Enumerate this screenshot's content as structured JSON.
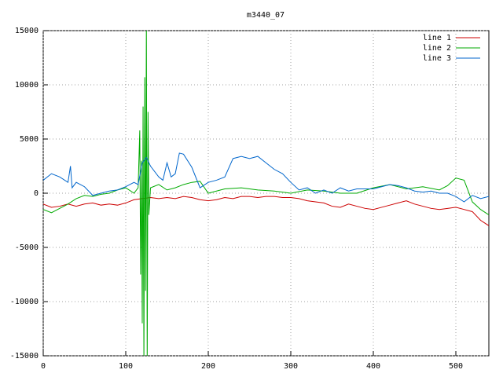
{
  "chart_data": {
    "type": "line",
    "title": "m3440_07",
    "xlim": [
      0,
      540
    ],
    "xticks": [
      0,
      100,
      200,
      300,
      400,
      500
    ],
    "ylim": [
      -15000,
      15000
    ],
    "yticks": [
      -15000,
      -10000,
      -5000,
      0,
      5000,
      10000,
      15000
    ],
    "grid": true,
    "legend": "top-right",
    "series": [
      {
        "name": "line 1",
        "color": "#cc0000",
        "x": [
          0,
          10,
          20,
          30,
          40,
          50,
          60,
          70,
          80,
          90,
          100,
          110,
          120,
          130,
          140,
          150,
          160,
          170,
          180,
          190,
          200,
          210,
          220,
          230,
          240,
          250,
          260,
          270,
          280,
          290,
          300,
          310,
          320,
          330,
          340,
          350,
          360,
          370,
          380,
          390,
          400,
          410,
          420,
          430,
          440,
          450,
          460,
          470,
          480,
          490,
          500,
          510,
          520,
          530,
          540
        ],
        "values": [
          -1000,
          -1300,
          -1200,
          -1000,
          -1200,
          -1000,
          -900,
          -1100,
          -1000,
          -1100,
          -900,
          -600,
          -500,
          -400,
          -500,
          -400,
          -500,
          -300,
          -400,
          -600,
          -700,
          -600,
          -400,
          -500,
          -300,
          -300,
          -400,
          -300,
          -300,
          -400,
          -400,
          -500,
          -700,
          -800,
          -900,
          -1200,
          -1300,
          -1000,
          -1200,
          -1400,
          -1500,
          -1300,
          -1100,
          -900,
          -700,
          -1000,
          -1200,
          -1400,
          -1500,
          -1400,
          -1300,
          -1500,
          -1700,
          -2500,
          -3000
        ]
      },
      {
        "name": "line 2",
        "color": "#00aa00",
        "x": [
          0,
          10,
          20,
          30,
          40,
          50,
          60,
          70,
          80,
          90,
          100,
          110,
          115,
          117,
          118,
          119,
          120,
          121,
          122,
          123,
          124,
          125,
          126,
          127,
          128,
          130,
          140,
          150,
          160,
          170,
          180,
          190,
          200,
          210,
          220,
          240,
          260,
          280,
          300,
          320,
          340,
          360,
          380,
          400,
          420,
          440,
          460,
          480,
          490,
          500,
          510,
          520,
          530,
          540
        ],
        "values": [
          -1500,
          -1800,
          -1400,
          -1000,
          -500,
          -200,
          -300,
          -100,
          0,
          300,
          500,
          0,
          500,
          5800,
          -7500,
          3000,
          -12000,
          8000,
          -16000,
          10700,
          -9000,
          16000,
          -16000,
          7500,
          -2000,
          500,
          800,
          300,
          500,
          800,
          1000,
          1100,
          0,
          200,
          400,
          500,
          300,
          200,
          0,
          300,
          200,
          0,
          0,
          500,
          800,
          400,
          600,
          300,
          700,
          1400,
          1200,
          -800,
          -1500,
          -2000
        ]
      },
      {
        "name": "line 3",
        "color": "#0066cc",
        "x": [
          0,
          10,
          20,
          30,
          33,
          35,
          40,
          50,
          60,
          70,
          80,
          90,
          100,
          110,
          115,
          120,
          125,
          130,
          140,
          145,
          150,
          155,
          160,
          165,
          170,
          180,
          190,
          200,
          210,
          220,
          230,
          240,
          250,
          260,
          270,
          280,
          290,
          300,
          310,
          320,
          330,
          340,
          350,
          360,
          370,
          380,
          400,
          410,
          420,
          430,
          440,
          450,
          460,
          470,
          480,
          490,
          500,
          510,
          520,
          530,
          540
        ],
        "values": [
          1200,
          1800,
          1500,
          1000,
          2500,
          500,
          1000,
          600,
          -200,
          0,
          200,
          300,
          600,
          1000,
          800,
          2800,
          3300,
          2500,
          1500,
          1200,
          2800,
          1500,
          1800,
          3700,
          3600,
          2400,
          500,
          1000,
          1200,
          1500,
          3200,
          3400,
          3200,
          3400,
          2800,
          2200,
          1800,
          1000,
          300,
          500,
          0,
          300,
          0,
          500,
          200,
          400,
          400,
          600,
          800,
          700,
          500,
          200,
          100,
          200,
          0,
          0,
          -300,
          -800,
          -200,
          -500,
          -300
        ]
      }
    ]
  }
}
